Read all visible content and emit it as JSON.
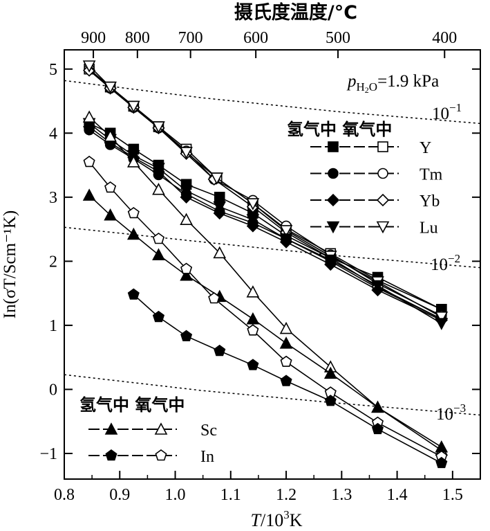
{
  "chart_data": {
    "type": "line",
    "top_axis": {
      "label": "摄氏度温度/°C",
      "ticks": [
        900,
        800,
        700,
        600,
        500,
        400
      ]
    },
    "xlabel_T": "T",
    "xlabel_rest": "/10",
    "xlabel_sup": "3",
    "xlabel_end": "K",
    "ylabel": "In(σT/Scm⁻¹K)",
    "xlim": [
      0.8,
      1.55
    ],
    "ylim": [
      -1.4,
      5.3
    ],
    "x_ticks": [
      "0.8",
      "0.9",
      "1.0",
      "1.1",
      "1.2",
      "1.3",
      "1.4",
      "1.5"
    ],
    "y_ticks": [
      "−1",
      "0",
      "1",
      "2",
      "3",
      "4",
      "5"
    ],
    "annotation": {
      "p": "p",
      "sub": "H",
      "sub2": "2",
      "sub3": "O",
      "value": "=1.9 kPa"
    },
    "iso_labels": [
      {
        "base": "10",
        "exp": "−1"
      },
      {
        "base": "10",
        "exp": "−2"
      },
      {
        "base": "10",
        "exp": "−3"
      }
    ],
    "legend_header_1": "氢气中 氧气中",
    "legend_header_2": "氢气中 氧气中",
    "series": [
      {
        "name": "Y",
        "marker": "square",
        "h2": [
          [
            0.845,
            4.15
          ],
          [
            0.883,
            4.0
          ],
          [
            0.925,
            3.75
          ],
          [
            0.97,
            3.5
          ],
          [
            1.02,
            3.2
          ],
          [
            1.08,
            3.0
          ],
          [
            1.14,
            2.75
          ],
          [
            1.2,
            2.4
          ],
          [
            1.28,
            2.05
          ],
          [
            1.365,
            1.75
          ],
          [
            1.48,
            1.25
          ]
        ],
        "o2": [
          [
            0.845,
            5.0
          ],
          [
            0.883,
            4.72
          ],
          [
            0.925,
            4.42
          ],
          [
            0.97,
            4.1
          ],
          [
            1.02,
            3.75
          ],
          [
            1.075,
            3.3
          ],
          [
            1.14,
            2.9
          ],
          [
            1.2,
            2.5
          ],
          [
            1.28,
            2.12
          ],
          [
            1.365,
            1.7
          ],
          [
            1.48,
            1.25
          ]
        ]
      },
      {
        "name": "Tm",
        "marker": "circle",
        "h2": [
          [
            0.845,
            4.05
          ],
          [
            0.883,
            3.82
          ],
          [
            0.925,
            3.6
          ],
          [
            0.97,
            3.35
          ],
          [
            1.02,
            3.05
          ],
          [
            1.08,
            2.78
          ],
          [
            1.14,
            2.6
          ],
          [
            1.2,
            2.35
          ],
          [
            1.28,
            2.0
          ],
          [
            1.365,
            1.58
          ],
          [
            1.48,
            1.1
          ]
        ],
        "o2": [
          [
            0.845,
            5.0
          ],
          [
            0.883,
            4.7
          ],
          [
            0.925,
            4.4
          ],
          [
            0.97,
            4.08
          ],
          [
            1.02,
            3.72
          ],
          [
            1.07,
            3.28
          ],
          [
            1.14,
            2.95
          ],
          [
            1.2,
            2.55
          ],
          [
            1.28,
            2.1
          ],
          [
            1.365,
            1.65
          ],
          [
            1.48,
            1.15
          ]
        ]
      },
      {
        "name": "Yb",
        "marker": "diamond",
        "h2": [
          [
            0.845,
            4.1
          ],
          [
            0.883,
            3.85
          ],
          [
            0.925,
            3.62
          ],
          [
            0.97,
            3.4
          ],
          [
            1.02,
            3.0
          ],
          [
            1.08,
            2.75
          ],
          [
            1.14,
            2.55
          ],
          [
            1.2,
            2.3
          ],
          [
            1.28,
            1.95
          ],
          [
            1.365,
            1.55
          ],
          [
            1.48,
            1.08
          ]
        ],
        "o2": [
          [
            0.845,
            4.98
          ],
          [
            0.883,
            4.7
          ],
          [
            0.925,
            4.4
          ],
          [
            0.97,
            4.08
          ],
          [
            1.02,
            3.68
          ],
          [
            1.07,
            3.28
          ],
          [
            1.14,
            2.85
          ],
          [
            1.2,
            2.45
          ],
          [
            1.28,
            2.05
          ],
          [
            1.365,
            1.6
          ],
          [
            1.48,
            1.1
          ]
        ]
      },
      {
        "name": "Lu",
        "marker": "triangle-down",
        "h2": [
          [
            0.845,
            4.15
          ],
          [
            0.883,
            3.9
          ],
          [
            0.925,
            3.65
          ],
          [
            0.97,
            3.45
          ],
          [
            1.02,
            3.1
          ],
          [
            1.08,
            2.85
          ],
          [
            1.14,
            2.65
          ],
          [
            1.2,
            2.35
          ],
          [
            1.28,
            2.02
          ],
          [
            1.365,
            1.62
          ],
          [
            1.48,
            1.03
          ]
        ],
        "o2": [
          [
            0.845,
            5.05
          ],
          [
            0.883,
            4.72
          ],
          [
            0.925,
            4.42
          ],
          [
            0.97,
            4.1
          ],
          [
            1.02,
            3.7
          ],
          [
            1.075,
            3.3
          ],
          [
            1.14,
            2.9
          ],
          [
            1.2,
            2.48
          ],
          [
            1.28,
            2.08
          ],
          [
            1.365,
            1.68
          ],
          [
            1.48,
            1.13
          ]
        ]
      },
      {
        "name": "Sc",
        "marker": "triangle",
        "h2": [
          [
            0.845,
            3.03
          ],
          [
            0.883,
            2.72
          ],
          [
            0.925,
            2.42
          ],
          [
            0.97,
            2.1
          ],
          [
            1.02,
            1.78
          ],
          [
            1.08,
            1.45
          ],
          [
            1.14,
            1.1
          ],
          [
            1.2,
            0.72
          ],
          [
            1.28,
            0.25
          ],
          [
            1.365,
            -0.28
          ],
          [
            1.48,
            -0.9
          ]
        ],
        "o2": [
          [
            0.845,
            4.25
          ],
          [
            0.883,
            3.95
          ],
          [
            0.925,
            3.55
          ],
          [
            0.97,
            3.12
          ],
          [
            1.02,
            2.65
          ],
          [
            1.08,
            2.13
          ],
          [
            1.14,
            1.52
          ],
          [
            1.2,
            0.95
          ],
          [
            1.28,
            0.35
          ],
          [
            1.365,
            -0.28
          ],
          [
            1.48,
            -0.95
          ]
        ]
      },
      {
        "name": "In",
        "marker": "pentagon",
        "h2": [
          [
            0.925,
            1.48
          ],
          [
            0.97,
            1.13
          ],
          [
            1.02,
            0.83
          ],
          [
            1.08,
            0.6
          ],
          [
            1.14,
            0.38
          ],
          [
            1.2,
            0.13
          ],
          [
            1.28,
            -0.18
          ],
          [
            1.365,
            -0.62
          ],
          [
            1.48,
            -1.15
          ]
        ],
        "o2": [
          [
            0.845,
            3.55
          ],
          [
            0.883,
            3.15
          ],
          [
            0.925,
            2.75
          ],
          [
            0.97,
            2.35
          ],
          [
            1.02,
            1.88
          ],
          [
            1.07,
            1.42
          ],
          [
            1.14,
            0.92
          ],
          [
            1.2,
            0.43
          ],
          [
            1.28,
            -0.05
          ],
          [
            1.365,
            -0.52
          ],
          [
            1.48,
            -1.05
          ]
        ]
      }
    ],
    "iso_lines": [
      {
        "label": "10^-1",
        "points": [
          [
            0.8,
            4.82
          ],
          [
            1.05,
            4.55
          ],
          [
            1.3,
            4.33
          ],
          [
            1.55,
            4.15
          ]
        ]
      },
      {
        "label": "10^-2",
        "points": [
          [
            0.8,
            2.53
          ],
          [
            1.05,
            2.3
          ],
          [
            1.3,
            2.08
          ],
          [
            1.55,
            1.9
          ]
        ]
      },
      {
        "label": "10^-3",
        "points": [
          [
            0.8,
            0.23
          ],
          [
            1.05,
            -0.02
          ],
          [
            1.3,
            -0.22
          ],
          [
            1.55,
            -0.4
          ]
        ]
      }
    ]
  }
}
